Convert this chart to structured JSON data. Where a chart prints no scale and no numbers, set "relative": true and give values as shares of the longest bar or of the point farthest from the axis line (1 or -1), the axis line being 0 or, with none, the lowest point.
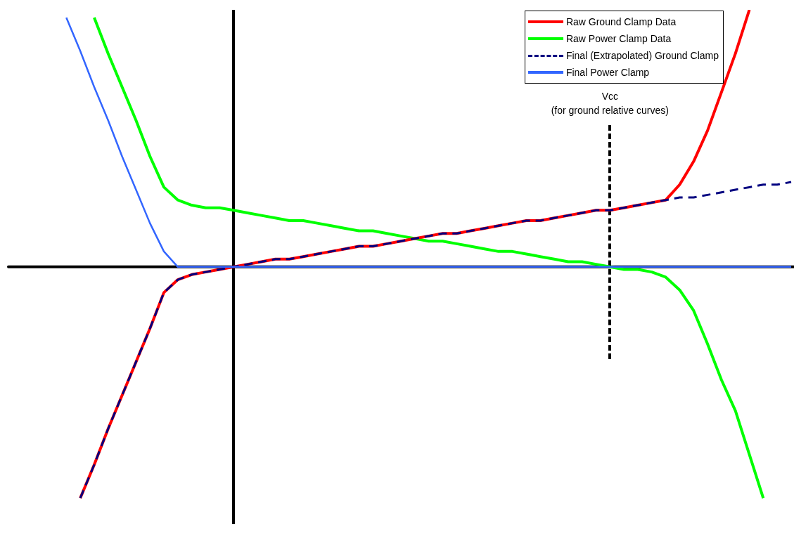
{
  "chart_data": {
    "type": "line",
    "relative": true,
    "legend": "top right",
    "marker": "none",
    "grid": false,
    "categories": [
      null,
      null,
      null,
      null,
      null,
      null,
      null,
      null,
      null,
      null,
      null,
      null,
      null,
      null,
      null,
      null,
      null,
      null,
      null,
      null,
      null,
      null,
      null,
      null,
      null,
      null,
      null,
      null,
      null,
      null,
      null,
      null,
      null,
      null,
      null,
      null,
      null,
      null,
      null,
      null,
      null,
      null,
      null,
      null,
      null,
      null,
      null,
      null,
      null,
      null,
      null,
      null,
      null,
      null,
      null,
      null,
      null
    ],
    "series": [
      {
        "name": "Raw Ground Clamp Data",
        "color": "#ff0000",
        "line_style": "solid",
        "values": [
          null,
          null,
          null,
          null,
          null,
          -0.9,
          -0.77,
          -0.63,
          -0.5,
          -0.37,
          -0.24,
          -0.1,
          -0.05,
          -0.03,
          -0.02,
          -0.01,
          0,
          0.01,
          0.02,
          0.03,
          0.03,
          0.04,
          0.05,
          0.06,
          0.07,
          0.08,
          0.08,
          0.09,
          0.1,
          0.11,
          0.12,
          0.13,
          0.13,
          0.14,
          0.15,
          0.16,
          0.17,
          0.18,
          0.18,
          0.19,
          0.2,
          0.21,
          0.22,
          0.22,
          0.23,
          0.24,
          0.25,
          0.26,
          0.32,
          0.41,
          0.53,
          0.68,
          0.83,
          1,
          null,
          null,
          null
        ]
      },
      {
        "name": "Raw Power Clamp Data",
        "color": "#00ff00",
        "line_style": "solid",
        "values": [
          null,
          null,
          null,
          null,
          null,
          null,
          0.97,
          0.83,
          0.7,
          0.57,
          0.43,
          0.31,
          0.26,
          0.24,
          0.23,
          0.23,
          0.22,
          0.21,
          0.2,
          0.19,
          0.18,
          0.18,
          0.17,
          0.16,
          0.15,
          0.14,
          0.14,
          0.13,
          0.12,
          0.11,
          0.1,
          0.1,
          0.09,
          0.08,
          0.07,
          0.06,
          0.06,
          0.05,
          0.04,
          0.03,
          0.02,
          0.02,
          0.01,
          0,
          -0.01,
          -0.01,
          -0.02,
          -0.04,
          -0.09,
          -0.17,
          -0.3,
          -0.44,
          -0.56,
          -0.73,
          -0.9,
          null,
          null
        ]
      },
      {
        "name": "Final (Extrapolated) Ground Clamp",
        "color": "#000080",
        "line_style": "dashed",
        "values": [
          null,
          null,
          null,
          null,
          null,
          -0.9,
          -0.77,
          -0.63,
          -0.5,
          -0.37,
          -0.24,
          -0.1,
          -0.05,
          -0.03,
          -0.02,
          -0.01,
          0,
          0.01,
          0.02,
          0.03,
          0.03,
          0.04,
          0.05,
          0.06,
          0.07,
          0.08,
          0.08,
          0.09,
          0.1,
          0.11,
          0.12,
          0.13,
          0.13,
          0.14,
          0.15,
          0.16,
          0.17,
          0.18,
          0.18,
          0.19,
          0.2,
          0.21,
          0.22,
          0.22,
          0.23,
          0.24,
          0.25,
          0.26,
          0.27,
          0.27,
          0.28,
          0.29,
          0.3,
          0.31,
          0.32,
          0.32,
          0.33
        ]
      },
      {
        "name": "Final Power Clamp",
        "color": "#3366ff",
        "line_style": "solid",
        "values": [
          null,
          null,
          null,
          null,
          0.97,
          0.84,
          0.7,
          0.57,
          0.43,
          0.3,
          0.17,
          0.06,
          0.0,
          0,
          0,
          0,
          0,
          0,
          0,
          0,
          0,
          0,
          0,
          0,
          0,
          0,
          0,
          0,
          0,
          0,
          0,
          0,
          0,
          0,
          0,
          0,
          0,
          0,
          0,
          0,
          0,
          0,
          0,
          0,
          0,
          0,
          0,
          0,
          0,
          0,
          0,
          0,
          0,
          0,
          0,
          0,
          0
        ]
      }
    ],
    "annotations": [
      "Vcc\n(for ground relative curves)"
    ]
  }
}
